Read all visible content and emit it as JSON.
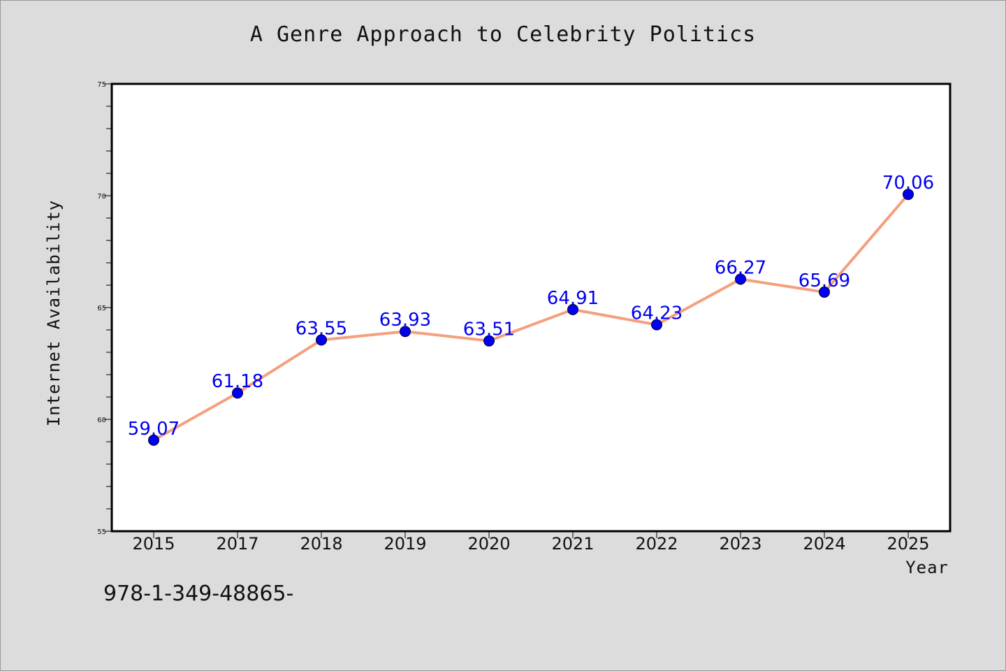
{
  "title": "A Genre Approach to Celebrity Politics",
  "footer_text": "978-1-349-48865-",
  "chart_data": {
    "type": "line",
    "title": "A Genre Approach to Celebrity Politics",
    "xlabel": "Year",
    "ylabel": "Internet Availability",
    "categories": [
      "2015",
      "2017",
      "2018",
      "2019",
      "2020",
      "2021",
      "2022",
      "2023",
      "2024",
      "2025"
    ],
    "series": [
      {
        "values": [
          59.07,
          61.18,
          63.55,
          63.93,
          63.51,
          64.91,
          64.23,
          66.27,
          65.69,
          70.06
        ],
        "value_labels": [
          "59.07",
          "61.18",
          "63.55",
          "63.93",
          "63.51",
          "64.91",
          "64.23",
          "66.27",
          "65.69",
          "70.06"
        ]
      }
    ],
    "ylim": [
      55,
      75
    ],
    "y_ticks": [
      "55",
      "60",
      "65",
      "70",
      "75"
    ],
    "grid": false,
    "colors": {
      "line": "#f4a07e",
      "marker": "#0000ee",
      "label": "#0000ee",
      "plot_bg": "#ffffff",
      "page_bg": "#dcdcdc"
    }
  }
}
